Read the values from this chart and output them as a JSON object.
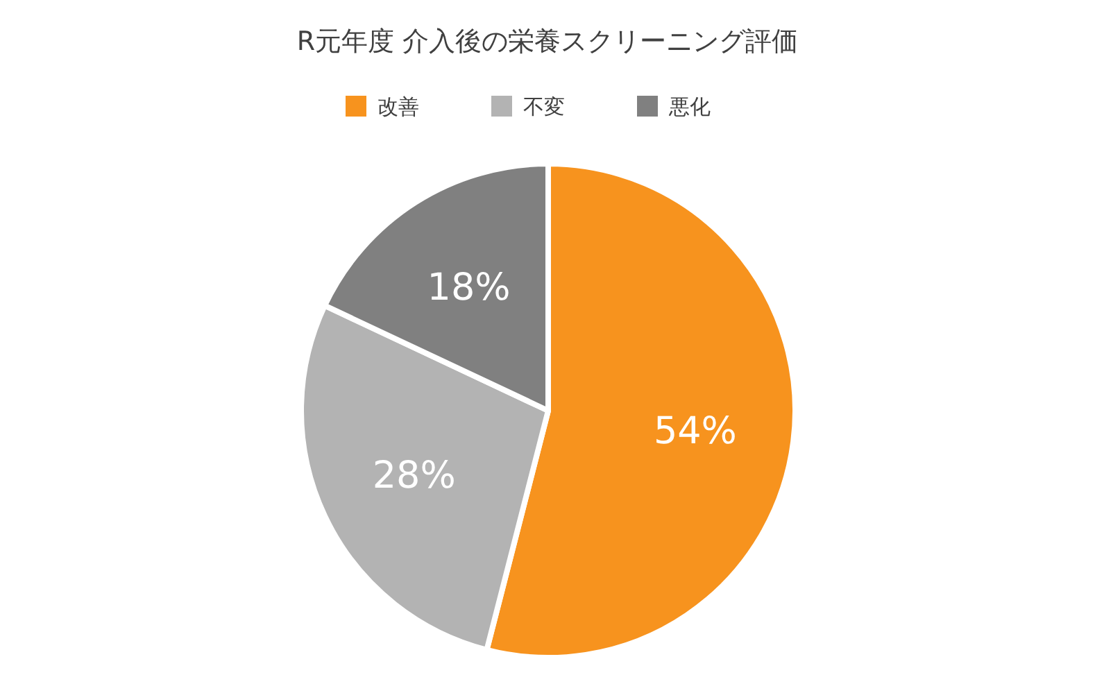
{
  "chart_data": {
    "type": "pie",
    "title": "R元年度 介入後の栄養スクリーニング評価",
    "categories": [
      "改善",
      "不変",
      "悪化"
    ],
    "values": [
      54,
      28,
      18
    ],
    "colors": [
      "#f7931e",
      "#b3b3b3",
      "#808080"
    ],
    "value_labels": [
      "54%",
      "28%",
      "18%"
    ],
    "legend": "top"
  }
}
